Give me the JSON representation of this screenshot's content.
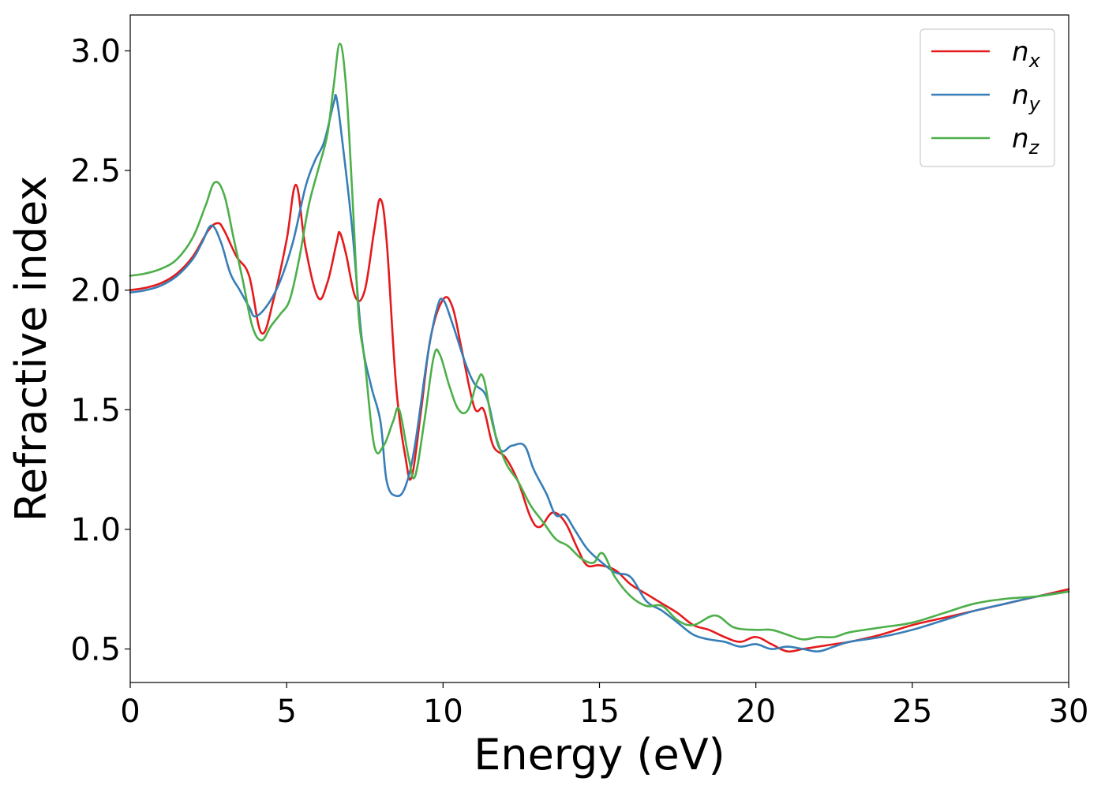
{
  "chart_data": {
    "type": "line",
    "title": "",
    "xlabel": "Energy (eV)",
    "ylabel": "Refractive index",
    "xlim": [
      0,
      30
    ],
    "ylim": [
      0.36,
      3.15
    ],
    "xticks": [
      0,
      5,
      10,
      15,
      20,
      25,
      30
    ],
    "xtick_labels": [
      "0",
      "5",
      "10",
      "15",
      "20",
      "25",
      "30"
    ],
    "yticks": [
      0.5,
      1.0,
      1.5,
      2.0,
      2.5,
      3.0
    ],
    "ytick_labels": [
      "0.5",
      "1.0",
      "1.5",
      "2.0",
      "2.5",
      "3.0"
    ],
    "grid": false,
    "legend": {
      "placement": "top-right",
      "entries": [
        {
          "base": "n",
          "sub": "x",
          "color": "#e41a1c"
        },
        {
          "base": "n",
          "sub": "y",
          "color": "#377eb8"
        },
        {
          "base": "n",
          "sub": "z",
          "color": "#4daf4a"
        }
      ]
    },
    "series": [
      {
        "name": "n_x",
        "color": "#e41a1c",
        "x": [
          0,
          0.5,
          1.0,
          1.5,
          2.0,
          2.5,
          2.8,
          3.0,
          3.4,
          3.8,
          4.2,
          4.6,
          5.0,
          5.3,
          5.6,
          6.0,
          6.3,
          6.6,
          6.7,
          6.9,
          7.2,
          7.5,
          7.8,
          8.0,
          8.2,
          8.5,
          8.8,
          9.0,
          9.3,
          9.6,
          10.0,
          10.3,
          10.6,
          11.0,
          11.3,
          11.6,
          12.0,
          12.4,
          12.8,
          13.1,
          13.5,
          13.9,
          14.3,
          14.6,
          15.0,
          15.5,
          16.0,
          16.5,
          17.0,
          17.5,
          18.0,
          18.5,
          19.0,
          19.5,
          20.0,
          20.5,
          21.0,
          21.5,
          22.0,
          22.5,
          23.0,
          24.0,
          25.0,
          26.0,
          27.0,
          28.0,
          29.0,
          30.0
        ],
        "y": [
          2.0,
          2.01,
          2.03,
          2.07,
          2.14,
          2.25,
          2.28,
          2.25,
          2.14,
          2.06,
          1.82,
          1.97,
          2.21,
          2.44,
          2.18,
          1.97,
          2.03,
          2.2,
          2.24,
          2.15,
          1.97,
          2.0,
          2.25,
          2.38,
          2.2,
          1.6,
          1.3,
          1.22,
          1.5,
          1.8,
          1.96,
          1.93,
          1.75,
          1.51,
          1.5,
          1.35,
          1.3,
          1.2,
          1.05,
          1.01,
          1.07,
          1.03,
          0.92,
          0.85,
          0.85,
          0.83,
          0.77,
          0.73,
          0.69,
          0.65,
          0.6,
          0.58,
          0.55,
          0.53,
          0.55,
          0.52,
          0.49,
          0.5,
          0.51,
          0.52,
          0.53,
          0.56,
          0.6,
          0.63,
          0.66,
          0.69,
          0.72,
          0.75
        ]
      },
      {
        "name": "n_y",
        "color": "#377eb8",
        "x": [
          0,
          0.5,
          1.0,
          1.5,
          2.0,
          2.3,
          2.6,
          2.9,
          3.2,
          3.5,
          3.8,
          4.0,
          4.4,
          4.8,
          5.2,
          5.6,
          5.9,
          6.2,
          6.5,
          6.6,
          6.8,
          7.1,
          7.4,
          7.7,
          8.0,
          8.2,
          8.5,
          8.8,
          9.1,
          9.5,
          9.8,
          10.0,
          10.3,
          10.7,
          11.0,
          11.4,
          11.8,
          12.2,
          12.6,
          12.9,
          13.3,
          13.6,
          13.9,
          14.2,
          14.6,
          15.0,
          15.5,
          16.0,
          16.5,
          17.0,
          17.5,
          18.0,
          18.5,
          19.0,
          19.5,
          20.0,
          20.5,
          21.0,
          21.5,
          22.0,
          22.5,
          23.0,
          24.0,
          25.0,
          26.0,
          27.0,
          28.0,
          29.0,
          30.0
        ],
        "y": [
          1.99,
          2.0,
          2.02,
          2.06,
          2.13,
          2.2,
          2.27,
          2.2,
          2.07,
          2.0,
          1.93,
          1.89,
          1.94,
          2.04,
          2.2,
          2.43,
          2.54,
          2.62,
          2.78,
          2.8,
          2.6,
          2.25,
          1.8,
          1.6,
          1.45,
          1.2,
          1.14,
          1.18,
          1.35,
          1.72,
          1.92,
          1.96,
          1.86,
          1.7,
          1.61,
          1.55,
          1.34,
          1.35,
          1.35,
          1.25,
          1.15,
          1.06,
          1.06,
          1.0,
          0.92,
          0.87,
          0.82,
          0.8,
          0.7,
          0.66,
          0.61,
          0.56,
          0.54,
          0.53,
          0.51,
          0.52,
          0.5,
          0.51,
          0.5,
          0.49,
          0.51,
          0.53,
          0.55,
          0.58,
          0.62,
          0.66,
          0.69,
          0.72,
          0.74
        ]
      },
      {
        "name": "n_z",
        "color": "#4daf4a",
        "x": [
          0,
          0.5,
          1.0,
          1.5,
          2.0,
          2.4,
          2.7,
          3.0,
          3.3,
          3.6,
          3.9,
          4.2,
          4.5,
          4.8,
          5.1,
          5.4,
          5.7,
          6.0,
          6.3,
          6.5,
          6.7,
          6.9,
          7.1,
          7.3,
          7.5,
          7.8,
          8.1,
          8.4,
          8.6,
          8.9,
          9.1,
          9.4,
          9.7,
          9.9,
          10.2,
          10.5,
          10.8,
          11.1,
          11.3,
          11.6,
          12.0,
          12.4,
          12.8,
          13.2,
          13.6,
          14.0,
          14.4,
          14.8,
          15.1,
          15.5,
          16.0,
          16.5,
          17.0,
          17.5,
          18.0,
          18.7,
          19.3,
          20.0,
          20.5,
          21.0,
          21.5,
          22.0,
          22.5,
          23.0,
          24.0,
          25.0,
          26.0,
          27.0,
          28.0,
          29.0,
          30.0
        ],
        "y": [
          2.06,
          2.07,
          2.09,
          2.13,
          2.22,
          2.35,
          2.45,
          2.4,
          2.22,
          2.04,
          1.85,
          1.79,
          1.85,
          1.9,
          1.96,
          2.13,
          2.35,
          2.5,
          2.65,
          2.85,
          3.03,
          2.85,
          2.4,
          1.9,
          1.7,
          1.35,
          1.35,
          1.45,
          1.5,
          1.3,
          1.22,
          1.45,
          1.72,
          1.73,
          1.6,
          1.5,
          1.5,
          1.62,
          1.63,
          1.43,
          1.28,
          1.2,
          1.1,
          1.03,
          0.96,
          0.93,
          0.88,
          0.86,
          0.9,
          0.8,
          0.72,
          0.68,
          0.68,
          0.62,
          0.6,
          0.64,
          0.59,
          0.58,
          0.58,
          0.56,
          0.54,
          0.55,
          0.55,
          0.57,
          0.59,
          0.61,
          0.65,
          0.69,
          0.71,
          0.72,
          0.74
        ]
      }
    ]
  }
}
